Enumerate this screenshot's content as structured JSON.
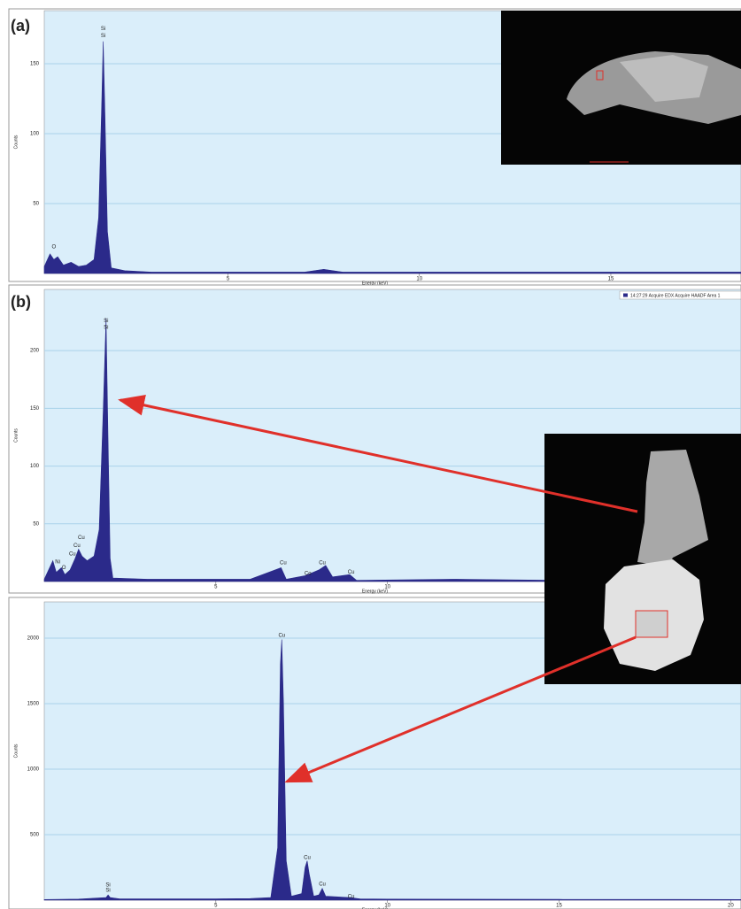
{
  "chart_data": [
    {
      "type": "area",
      "panel_label": "(a)",
      "ylabel": "Counts",
      "xlabel": "Energy (keV)",
      "grid": true,
      "xlim": [
        0.2,
        18.4
      ],
      "ylim": [
        0,
        188
      ],
      "xticks": [
        5,
        10,
        15
      ],
      "yticks": [
        50,
        100,
        150
      ],
      "x": [
        0.2,
        0.35,
        0.45,
        0.55,
        0.7,
        0.9,
        1.1,
        1.3,
        1.5,
        1.62,
        1.7,
        1.74,
        1.78,
        1.85,
        1.95,
        2.3,
        3,
        4,
        5,
        6,
        7,
        7.5,
        8,
        10,
        12,
        14,
        16,
        18.4
      ],
      "series": [
        {
          "color": "#2b2a8a",
          "values": [
            5,
            14,
            10,
            12,
            6,
            8,
            5,
            6,
            10,
            40,
            120,
            166,
            120,
            30,
            4,
            2,
            1,
            1,
            1,
            1,
            1,
            3,
            1,
            1,
            1,
            1,
            1,
            1
          ]
        }
      ],
      "annotations": [
        {
          "text": "Si",
          "x": 1.74,
          "y": 175
        },
        {
          "text": "Si",
          "x": 1.74,
          "y": 170
        },
        {
          "text": "O",
          "x": 0.45,
          "y": 19
        }
      ]
    },
    {
      "type": "area",
      "panel_label": "(b)",
      "ylabel": "Counts",
      "xlabel": "Energy (keV)",
      "grid": true,
      "xlim": [
        0,
        20.3
      ],
      "ylim": [
        0,
        253
      ],
      "xticks": [
        5,
        10
      ],
      "yticks": [
        50,
        100,
        150,
        200
      ],
      "x": [
        0,
        0.25,
        0.35,
        0.5,
        0.6,
        0.75,
        0.9,
        1.0,
        1.1,
        1.25,
        1.45,
        1.6,
        1.72,
        1.8,
        1.86,
        1.92,
        2.0,
        3,
        4,
        5,
        6,
        6.9,
        7.05,
        7.6,
        8.0,
        8.2,
        8.4,
        8.9,
        9.1,
        12,
        15,
        20.3
      ],
      "series": [
        {
          "name": "14:27:29 Acquire EDX Acquire HAADF Area 1",
          "color": "#2b2a8a",
          "values": [
            2,
            18,
            8,
            12,
            6,
            10,
            20,
            28,
            22,
            18,
            22,
            45,
            150,
            228,
            120,
            20,
            3,
            2,
            2,
            2,
            2,
            12,
            2,
            5,
            10,
            14,
            4,
            6,
            1,
            2,
            1,
            1
          ]
        }
      ],
      "annotations": [
        {
          "text": "Si",
          "x": 1.8,
          "y": 226
        },
        {
          "text": "Si",
          "x": 1.8,
          "y": 220
        },
        {
          "text": "Cu",
          "x": 1.08,
          "y": 38
        },
        {
          "text": "Cu",
          "x": 0.95,
          "y": 31
        },
        {
          "text": "Cu",
          "x": 0.82,
          "y": 24
        },
        {
          "text": "Ni",
          "x": 0.39,
          "y": 17
        },
        {
          "text": "O",
          "x": 0.57,
          "y": 12
        },
        {
          "text": "Cu",
          "x": 6.96,
          "y": 16
        },
        {
          "text": "Co",
          "x": 7.68,
          "y": 7
        },
        {
          "text": "Cu",
          "x": 8.1,
          "y": 16
        },
        {
          "text": "Cu",
          "x": 8.94,
          "y": 8
        }
      ]
    },
    {
      "type": "area",
      "ylabel": "Counts",
      "xlabel": "Energy (keV)",
      "grid": true,
      "xlim": [
        0,
        20.3
      ],
      "ylim": [
        0,
        2277
      ],
      "xticks": [
        5,
        10,
        15,
        20
      ],
      "yticks": [
        500,
        1000,
        1500,
        2000
      ],
      "x": [
        0,
        1,
        1.8,
        1.86,
        1.92,
        2.2,
        3,
        4,
        5,
        6,
        6.6,
        6.8,
        6.88,
        6.92,
        6.97,
        7.05,
        7.2,
        7.5,
        7.6,
        7.66,
        7.72,
        7.85,
        8.0,
        8.1,
        8.2,
        8.9,
        9.2,
        10,
        15,
        20.3
      ],
      "series": [
        {
          "color": "#2b2a8a",
          "values": [
            5,
            8,
            20,
            40,
            20,
            10,
            10,
            10,
            10,
            12,
            20,
            400,
            1800,
            1990,
            1500,
            300,
            30,
            50,
            250,
            300,
            200,
            30,
            40,
            90,
            30,
            20,
            10,
            8,
            6,
            5
          ]
        }
      ],
      "annotations": [
        {
          "text": "Si",
          "x": 1.86,
          "y": 115
        },
        {
          "text": "Si",
          "x": 1.86,
          "y": 74
        },
        {
          "text": "Cu",
          "x": 6.92,
          "y": 2020
        },
        {
          "text": "Cu",
          "x": 7.66,
          "y": 324
        },
        {
          "text": "Cu",
          "x": 8.1,
          "y": 122
        },
        {
          "text": "Cu",
          "x": 8.94,
          "y": 27
        }
      ]
    }
  ]
}
